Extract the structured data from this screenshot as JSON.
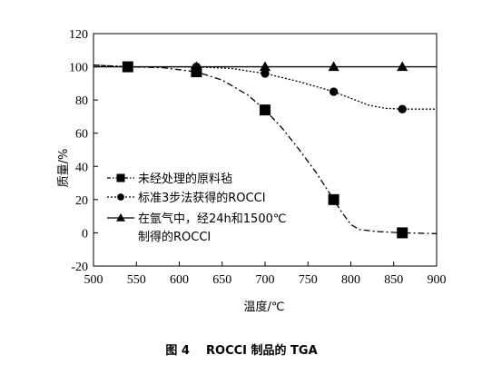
{
  "chart_data": {
    "type": "line",
    "title": "",
    "caption": "图 4    ROCCI 制品的 TGA",
    "xlabel": "温度/℃",
    "ylabel": "质量/%",
    "xlim": [
      500,
      900
    ],
    "ylim": [
      -20,
      120
    ],
    "xticks": [
      500,
      550,
      600,
      650,
      700,
      750,
      800,
      850,
      900
    ],
    "yticks": [
      -20,
      0,
      20,
      40,
      60,
      80,
      100,
      120
    ],
    "grid": false,
    "legend_position": "bottom-left",
    "series": [
      {
        "name": "未经处理的原料毡",
        "marker": "square",
        "line_style": "dash-dot",
        "points": [
          [
            540,
            100
          ],
          [
            620,
            97
          ],
          [
            700,
            74
          ],
          [
            780,
            20
          ],
          [
            860,
            0
          ]
        ],
        "curve": [
          [
            500,
            101
          ],
          [
            540,
            100
          ],
          [
            580,
            99.5
          ],
          [
            620,
            97
          ],
          [
            650,
            92
          ],
          [
            680,
            83
          ],
          [
            700,
            74
          ],
          [
            720,
            63
          ],
          [
            740,
            50
          ],
          [
            760,
            36
          ],
          [
            780,
            20
          ],
          [
            790,
            12
          ],
          [
            800,
            5
          ],
          [
            810,
            2
          ],
          [
            830,
            0.8
          ],
          [
            860,
            0
          ],
          [
            900,
            -0.5
          ]
        ]
      },
      {
        "name": "标准3步法获得的ROCCI",
        "marker": "circle",
        "line_style": "dotted",
        "points": [
          [
            540,
            100
          ],
          [
            620,
            100
          ],
          [
            700,
            96
          ],
          [
            780,
            85
          ],
          [
            860,
            74.5
          ]
        ],
        "curve": [
          [
            500,
            101
          ],
          [
            540,
            100
          ],
          [
            620,
            100
          ],
          [
            660,
            99
          ],
          [
            700,
            96
          ],
          [
            740,
            91
          ],
          [
            780,
            85
          ],
          [
            800,
            81
          ],
          [
            820,
            77
          ],
          [
            840,
            75
          ],
          [
            860,
            74.5
          ],
          [
            900,
            74.5
          ]
        ]
      },
      {
        "name": "在氩气中，经24h和1500℃制得的ROCCI",
        "legend_lines": [
          "在氩气中，经24h和1500℃",
          "制得的ROCCI"
        ],
        "marker": "triangle",
        "line_style": "solid",
        "points": [
          [
            540,
            100
          ],
          [
            620,
            100
          ],
          [
            700,
            100
          ],
          [
            780,
            100
          ],
          [
            860,
            100
          ]
        ],
        "curve": [
          [
            500,
            100
          ],
          [
            540,
            100
          ],
          [
            900,
            100
          ]
        ]
      }
    ]
  }
}
